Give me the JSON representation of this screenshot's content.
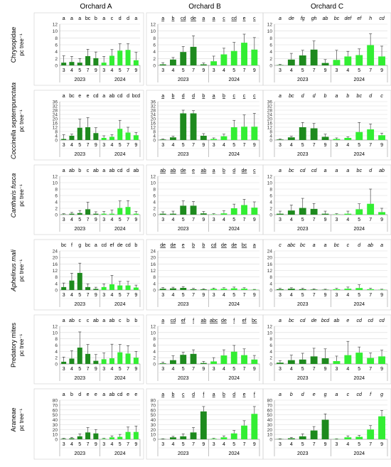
{
  "figure": {
    "columns": [
      "Orchard A",
      "Orchard B",
      "Orchard C"
    ],
    "row_labels": [
      {
        "taxon": "Chrysopidae",
        "unit": "pc tree⁻¹",
        "italic": false
      },
      {
        "taxon": "Coccinella septempunctata",
        "unit": "pc tree⁻¹",
        "italic": true
      },
      {
        "taxon": "Cantharis fusca",
        "unit": "pc tree⁻¹",
        "italic": true
      },
      {
        "taxon": "Aphelinus mali",
        "unit": "pc tree⁻¹",
        "italic": true
      },
      {
        "taxon": "Predatory mites",
        "unit": "pc tree⁻¹",
        "italic": false
      },
      {
        "taxon": "Araneae",
        "unit": "pc tree⁻¹",
        "italic": false
      }
    ],
    "colors": {
      "year_2023": "#1e8a1e",
      "year_2024": "#33ee33",
      "grid": "#d9d9d9",
      "frame": "#9a9a9a"
    }
  },
  "chart_data": [
    {
      "type": "bar",
      "row": "Chrysopidae",
      "orchard": "Orchard A",
      "ylim": [
        0,
        12
      ],
      "yticks": [
        0,
        2,
        4,
        6,
        8,
        10,
        12
      ],
      "categories": [
        "3",
        "4",
        "5",
        "7",
        "9",
        "3",
        "4",
        "5",
        "7",
        "9"
      ],
      "years": [
        "2023",
        "2024"
      ],
      "values": [
        0.8,
        1.0,
        0.8,
        2.7,
        2.1,
        0.8,
        2.8,
        4.3,
        4.5,
        1.5
      ],
      "errors": [
        2.0,
        1.6,
        1.2,
        2.0,
        1.8,
        1.8,
        1.8,
        2.0,
        1.8,
        2.3
      ],
      "letters": [
        "a",
        "a",
        "a",
        "bc",
        "b",
        "a",
        "c",
        "d",
        "d",
        "a"
      ],
      "letter_style": "normal"
    },
    {
      "type": "bar",
      "row": "Chrysopidae",
      "orchard": "Orchard B",
      "ylim": [
        0,
        12
      ],
      "yticks": [
        0,
        2,
        4,
        6,
        8,
        10,
        12
      ],
      "categories": [
        "3",
        "4",
        "5",
        "7",
        "9",
        "3",
        "4",
        "5",
        "7",
        "9"
      ],
      "years": [
        "2023",
        "2024"
      ],
      "values": [
        0.3,
        1.7,
        3.9,
        5.4,
        0.3,
        1.2,
        3.2,
        4.2,
        6.6,
        4.6
      ],
      "errors": [
        0.5,
        0.6,
        1.6,
        3.2,
        0.4,
        1.5,
        1.8,
        2.5,
        2.5,
        3.5
      ],
      "letters": [
        "a",
        "b",
        "cd",
        "de",
        "a",
        "a",
        "c",
        "cd",
        "e",
        "c"
      ],
      "letter_style": "underline"
    },
    {
      "type": "bar",
      "row": "Chrysopidae",
      "orchard": "Orchard C",
      "ylim": [
        0,
        12
      ],
      "yticks": [
        0,
        2,
        4,
        6,
        8,
        10,
        12
      ],
      "categories": [
        "3",
        "4",
        "5",
        "7",
        "9",
        "3",
        "4",
        "5",
        "7",
        "9"
      ],
      "years": [
        "2023",
        "2024"
      ],
      "values": [
        0.1,
        1.7,
        2.9,
        4.6,
        0.7,
        1.6,
        2.6,
        3.0,
        5.9,
        2.6
      ],
      "errors": [
        0.2,
        1.8,
        1.5,
        2.5,
        1.0,
        2.8,
        1.5,
        1.8,
        3.3,
        3.0
      ],
      "letters": [
        "a",
        "de",
        "fg",
        "gh",
        "ab",
        "bc",
        "def",
        "ef",
        "h",
        "cd"
      ],
      "letter_style": "italic"
    },
    {
      "type": "bar",
      "row": "Coccinella septempunctata",
      "orchard": "Orchard A",
      "ylim": [
        0,
        36
      ],
      "yticks": [
        0,
        4,
        8,
        12,
        16,
        20,
        24,
        28,
        32,
        36
      ],
      "categories": [
        "3",
        "4",
        "5",
        "7",
        "9",
        "3",
        "4",
        "5",
        "7",
        "9"
      ],
      "years": [
        "2023",
        "2024"
      ],
      "values": [
        1.0,
        4.0,
        11.5,
        12.0,
        6.5,
        2.0,
        3.0,
        10.5,
        7.0,
        4.5
      ],
      "errors": [
        4.0,
        1.5,
        8.0,
        9.0,
        5.0,
        2.0,
        2.0,
        8.0,
        5.0,
        2.5
      ],
      "letters": [
        "a",
        "bc",
        "e",
        "e",
        "cd",
        "a",
        "ab",
        "cd",
        "d",
        "bcd"
      ],
      "letter_style": "normal"
    },
    {
      "type": "bar",
      "row": "Coccinella septempunctata",
      "orchard": "Orchard B",
      "ylim": [
        0,
        36
      ],
      "yticks": [
        0,
        4,
        8,
        12,
        16,
        20,
        24,
        28,
        32,
        36
      ],
      "categories": [
        "3",
        "4",
        "5",
        "7",
        "9",
        "3",
        "4",
        "5",
        "7",
        "9"
      ],
      "years": [
        "2023",
        "2024"
      ],
      "values": [
        0.5,
        2.5,
        25.0,
        25.0,
        4.0,
        1.0,
        3.5,
        12.0,
        12.5,
        12.5
      ],
      "errors": [
        0.5,
        1.0,
        3.0,
        2.5,
        2.0,
        1.0,
        2.0,
        6.5,
        11.0,
        12.5
      ],
      "letters": [
        "a",
        "b",
        "d",
        "d",
        "b",
        "a",
        "b",
        "c",
        "c",
        "c"
      ],
      "letter_style": "underline"
    },
    {
      "type": "bar",
      "row": "Coccinella septempunctata",
      "orchard": "Orchard C",
      "ylim": [
        0,
        36
      ],
      "yticks": [
        0,
        4,
        8,
        12,
        16,
        20,
        24,
        28,
        32,
        36
      ],
      "categories": [
        "3",
        "4",
        "5",
        "7",
        "9",
        "3",
        "4",
        "5",
        "7",
        "9"
      ],
      "years": [
        "2023",
        "2024"
      ],
      "values": [
        0.5,
        2.5,
        12.0,
        11.0,
        3.0,
        1.0,
        2.0,
        7.5,
        10.0,
        4.5
      ],
      "errors": [
        0.5,
        1.0,
        4.5,
        4.5,
        2.5,
        1.0,
        1.0,
        9.0,
        5.0,
        2.0
      ],
      "letters": [
        "a",
        "bc",
        "d",
        "d",
        "b",
        "a",
        "b",
        "bc",
        "d",
        "c"
      ],
      "letter_style": "italic"
    },
    {
      "type": "bar",
      "row": "Cantharis fusca",
      "orchard": "Orchard A",
      "ylim": [
        0,
        12
      ],
      "yticks": [
        0,
        2,
        4,
        6,
        8,
        10,
        12
      ],
      "categories": [
        "3",
        "4",
        "5",
        "7",
        "9",
        "3",
        "4",
        "5",
        "7",
        "9"
      ],
      "years": [
        "2023",
        "2024"
      ],
      "values": [
        0.1,
        0.3,
        0.5,
        1.7,
        0.3,
        0.3,
        0.3,
        2.1,
        2.4,
        0.3
      ],
      "errors": [
        0.2,
        0.4,
        0.8,
        2.2,
        0.6,
        0.7,
        1.1,
        2.2,
        2.0,
        0.7
      ],
      "letters": [
        "a",
        "ab",
        "b",
        "c",
        "ab",
        "a",
        "ab",
        "cd",
        "d",
        "ab"
      ],
      "letter_style": "normal"
    },
    {
      "type": "bar",
      "row": "Cantharis fusca",
      "orchard": "Orchard B",
      "ylim": [
        0,
        12
      ],
      "yticks": [
        0,
        2,
        4,
        6,
        8,
        10,
        12
      ],
      "categories": [
        "3",
        "4",
        "5",
        "7",
        "9",
        "3",
        "4",
        "5",
        "7",
        "9"
      ],
      "years": [
        "2023",
        "2024"
      ],
      "values": [
        0.3,
        0.3,
        2.8,
        2.8,
        0.4,
        0.1,
        0.4,
        2.0,
        3.0,
        2.2
      ],
      "errors": [
        0.6,
        0.8,
        1.5,
        1.3,
        0.6,
        0.2,
        0.8,
        1.3,
        1.8,
        1.8
      ],
      "letters": [
        "ab",
        "ab",
        "de",
        "e",
        "ab",
        "a",
        "b",
        "d",
        "de",
        "c"
      ],
      "letter_style": "underline"
    },
    {
      "type": "bar",
      "row": "Cantharis fusca",
      "orchard": "Orchard C",
      "ylim": [
        0,
        12
      ],
      "yticks": [
        0,
        2,
        4,
        6,
        8,
        10,
        12
      ],
      "categories": [
        "3",
        "4",
        "5",
        "7",
        "9",
        "3",
        "4",
        "5",
        "7",
        "9"
      ],
      "years": [
        "2023",
        "2024"
      ],
      "values": [
        0.3,
        1.3,
        2.1,
        1.8,
        0.3,
        0.1,
        0.3,
        1.7,
        3.4,
        0.8
      ],
      "errors": [
        0.8,
        1.7,
        3.0,
        1.7,
        0.8,
        0.2,
        0.8,
        1.7,
        4.6,
        1.2
      ],
      "letters": [
        "a",
        "bc",
        "cd",
        "cd",
        "a",
        "a",
        "a",
        "bc",
        "d",
        "ab"
      ],
      "letter_style": "italic"
    },
    {
      "type": "bar",
      "row": "Aphelinus mali",
      "orchard": "Orchard A",
      "ylim": [
        0,
        24
      ],
      "yticks": [
        0,
        4,
        8,
        12,
        16,
        20,
        24
      ],
      "categories": [
        "3",
        "4",
        "5",
        "7",
        "9",
        "3",
        "4",
        "5",
        "7",
        "9"
      ],
      "years": [
        "2023",
        "2024"
      ],
      "values": [
        1.8,
        5.8,
        10.5,
        1.8,
        0.7,
        1.8,
        3.5,
        2.8,
        2.8,
        1.5
      ],
      "errors": [
        2.5,
        4.5,
        6.0,
        2.0,
        1.0,
        2.0,
        5.5,
        2.5,
        2.5,
        1.5
      ],
      "letters": [
        "bc",
        "f",
        "g",
        "bc",
        "a",
        "cd",
        "ef",
        "de",
        "cd",
        "b"
      ],
      "letter_style": "normal"
    },
    {
      "type": "bar",
      "row": "Aphelinus mali",
      "orchard": "Orchard B",
      "ylim": [
        0,
        24
      ],
      "yticks": [
        0,
        4,
        8,
        12,
        16,
        20,
        24
      ],
      "categories": [
        "3",
        "4",
        "5",
        "7",
        "9",
        "3",
        "4",
        "5",
        "7",
        "9"
      ],
      "years": [
        "2023",
        "2024"
      ],
      "values": [
        0.8,
        1.0,
        1.3,
        0.5,
        0.4,
        0.7,
        0.8,
        1.0,
        0.8,
        0.2
      ],
      "errors": [
        0.7,
        0.7,
        0.8,
        0.5,
        0.4,
        0.5,
        0.6,
        0.8,
        0.6,
        0.2
      ],
      "letters": [
        "de",
        "de",
        "e",
        "b",
        "b",
        "cd",
        "de",
        "de",
        "bc",
        "a"
      ],
      "letter_style": "underline"
    },
    {
      "type": "bar",
      "row": "Aphelinus mali",
      "orchard": "Orchard C",
      "ylim": [
        0,
        24
      ],
      "yticks": [
        0,
        4,
        8,
        12,
        16,
        20,
        24
      ],
      "categories": [
        "3",
        "4",
        "5",
        "7",
        "9",
        "3",
        "4",
        "5",
        "7",
        "9"
      ],
      "years": [
        "2023",
        "2024"
      ],
      "values": [
        0.5,
        0.8,
        0.5,
        0.3,
        0.2,
        0.5,
        0.8,
        1.2,
        0.5,
        0.2
      ],
      "errors": [
        0.5,
        0.6,
        0.6,
        0.4,
        0.3,
        0.5,
        1.0,
        2.0,
        0.6,
        0.3
      ],
      "letters": [
        "c",
        "abc",
        "bc",
        "a",
        "a",
        "bc",
        "c",
        "d",
        "ab",
        "a"
      ],
      "letter_style": "italic"
    },
    {
      "type": "bar",
      "row": "Predatory mites",
      "orchard": "Orchard A",
      "ylim": [
        0,
        12
      ],
      "yticks": [
        0,
        2,
        4,
        6,
        8,
        10,
        12
      ],
      "categories": [
        "3",
        "4",
        "5",
        "7",
        "9",
        "3",
        "4",
        "5",
        "7",
        "9"
      ],
      "years": [
        "2023",
        "2024"
      ],
      "values": [
        0.7,
        1.7,
        5.2,
        3.2,
        1.0,
        1.5,
        1.8,
        3.7,
        3.3,
        2.0
      ],
      "errors": [
        1.5,
        2.5,
        5.0,
        3.0,
        2.0,
        2.0,
        4.5,
        2.5,
        2.5,
        2.0
      ],
      "letters": [
        "a",
        "ab",
        "c",
        "c",
        "ab",
        "a",
        "ab",
        "c",
        "b",
        "b"
      ],
      "letter_style": "normal"
    },
    {
      "type": "bar",
      "row": "Predatory mites",
      "orchard": "Orchard B",
      "ylim": [
        0,
        12
      ],
      "yticks": [
        0,
        2,
        4,
        6,
        8,
        10,
        12
      ],
      "categories": [
        "3",
        "4",
        "5",
        "7",
        "9",
        "3",
        "4",
        "5",
        "7",
        "9"
      ],
      "years": [
        "2023",
        "2024"
      ],
      "values": [
        0.2,
        1.2,
        2.9,
        3.2,
        0.3,
        0.8,
        2.7,
        3.9,
        2.8,
        1.4
      ],
      "errors": [
        0.4,
        1.4,
        0.8,
        1.3,
        0.5,
        1.2,
        1.8,
        2.0,
        2.0,
        1.3
      ],
      "letters": [
        "a",
        "cd",
        "ef",
        "f",
        "ab",
        "abc",
        "de",
        "f",
        "ef",
        "bc"
      ],
      "letter_style": "underline"
    },
    {
      "type": "bar",
      "row": "Predatory mites",
      "orchard": "Orchard C",
      "ylim": [
        0,
        12
      ],
      "yticks": [
        0,
        2,
        4,
        6,
        8,
        10,
        12
      ],
      "categories": [
        "3",
        "4",
        "5",
        "7",
        "9",
        "3",
        "4",
        "5",
        "7",
        "9"
      ],
      "years": [
        "2023",
        "2024"
      ],
      "values": [
        0.4,
        1.2,
        1.4,
        2.4,
        1.8,
        0.9,
        2.8,
        3.6,
        1.9,
        2.4
      ],
      "errors": [
        0.6,
        1.6,
        2.0,
        2.6,
        3.0,
        1.6,
        4.4,
        1.8,
        1.6,
        2.0
      ],
      "letters": [
        "a",
        "bc",
        "cd",
        "de",
        "bcd",
        "ab",
        "e",
        "cd",
        "cd",
        "cd"
      ],
      "letter_style": "italic"
    },
    {
      "type": "bar",
      "row": "Araneae",
      "orchard": "Orchard A",
      "ylim": [
        0,
        80
      ],
      "yticks": [
        0,
        10,
        20,
        30,
        40,
        50,
        60,
        70,
        80
      ],
      "categories": [
        "3",
        "4",
        "5",
        "7",
        "9",
        "3",
        "4",
        "5",
        "7",
        "9"
      ],
      "years": [
        "2023",
        "2024"
      ],
      "values": [
        1.0,
        2.0,
        6.0,
        14.0,
        12.0,
        1.0,
        4.0,
        5.0,
        15.0,
        15.0
      ],
      "errors": [
        1.0,
        2.0,
        5.0,
        10.0,
        8.0,
        1.0,
        3.0,
        5.0,
        10.0,
        12.0
      ],
      "letters": [
        "a",
        "b",
        "d",
        "e",
        "e",
        "a",
        "ab",
        "cd",
        "e",
        "e"
      ],
      "letter_style": "normal"
    },
    {
      "type": "bar",
      "row": "Araneae",
      "orchard": "Orchard B",
      "ylim": [
        0,
        80
      ],
      "yticks": [
        0,
        10,
        20,
        30,
        40,
        50,
        60,
        70,
        80
      ],
      "categories": [
        "3",
        "4",
        "5",
        "7",
        "9",
        "3",
        "4",
        "5",
        "7",
        "9"
      ],
      "years": [
        "2023",
        "2024"
      ],
      "values": [
        0.5,
        4.0,
        6.0,
        14.0,
        57.0,
        1.0,
        4.0,
        12.0,
        28.0,
        52.0
      ],
      "errors": [
        0.5,
        2.0,
        5.0,
        10.0,
        10.0,
        1.0,
        3.0,
        6.0,
        10.0,
        15.0
      ],
      "letters": [
        "a",
        "b",
        "c",
        "d",
        "f",
        "a",
        "b",
        "d",
        "e",
        "f"
      ],
      "letter_style": "underline"
    },
    {
      "type": "bar",
      "row": "Araneae",
      "orchard": "Orchard C",
      "ylim": [
        0,
        80
      ],
      "yticks": [
        0,
        10,
        20,
        30,
        40,
        50,
        60,
        70,
        80
      ],
      "categories": [
        "3",
        "4",
        "5",
        "7",
        "9",
        "3",
        "4",
        "5",
        "7",
        "9"
      ],
      "years": [
        "2023",
        "2024"
      ],
      "values": [
        0.5,
        2.0,
        6.0,
        18.0,
        40.0,
        0.5,
        4.0,
        5.0,
        20.0,
        47.0
      ],
      "errors": [
        0.5,
        2.0,
        5.0,
        8.0,
        12.0,
        0.5,
        3.0,
        3.0,
        8.0,
        12.0
      ],
      "letters": [
        "a",
        "b",
        "d",
        "e",
        "g",
        "a",
        "c",
        "cd",
        "f",
        "g"
      ],
      "letter_style": "italic"
    }
  ]
}
